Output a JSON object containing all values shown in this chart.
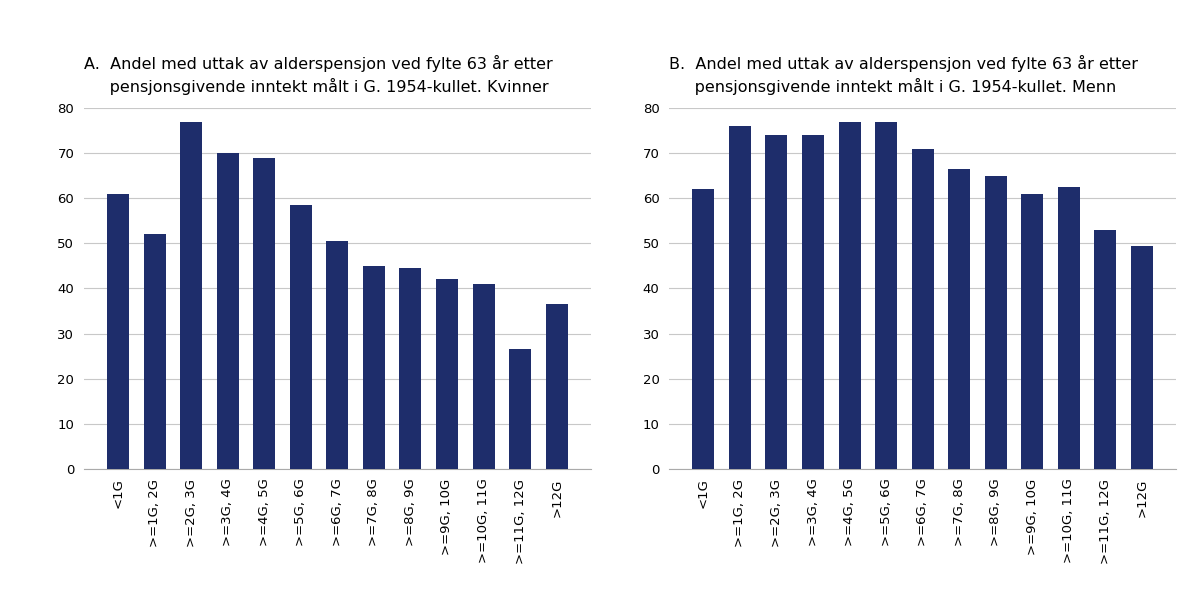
{
  "title_A": "A.  Andel med uttak av alderspensjon ved fylte 63 år etter\n     pensjonsgivende inntekt målt i G. 1954-kullet. Kvinner",
  "title_B": "B.  Andel med uttak av alderspensjon ved fylte 63 år etter\n     pensjonsgivende inntekt målt i G. 1954-kullet. Menn",
  "categories": [
    "<1G",
    ">=1G, 2G",
    ">=2G, 3G",
    ">=3G, 4G",
    ">=4G, 5G",
    ">=5G, 6G",
    ">=6G, 7G",
    ">=7G, 8G",
    ">=8G, 9G",
    ">=9G, 10G",
    ">=10G, 11G",
    ">=11G, 12G",
    ">12G"
  ],
  "values_A": [
    61,
    52,
    77,
    70,
    69,
    58.5,
    50.5,
    45,
    44.5,
    42,
    41,
    26.5,
    36.5
  ],
  "values_B": [
    62,
    76,
    74,
    74,
    77,
    77,
    71,
    66.5,
    65,
    61,
    62.5,
    53,
    49.5
  ],
  "bar_color": "#1e2d6b",
  "ylim": [
    0,
    80
  ],
  "yticks": [
    0,
    10,
    20,
    30,
    40,
    50,
    60,
    70,
    80
  ],
  "bg_color": "#ffffff",
  "grid_color": "#c8c8c8",
  "title_fontsize": 11.5,
  "tick_fontsize": 9.5
}
